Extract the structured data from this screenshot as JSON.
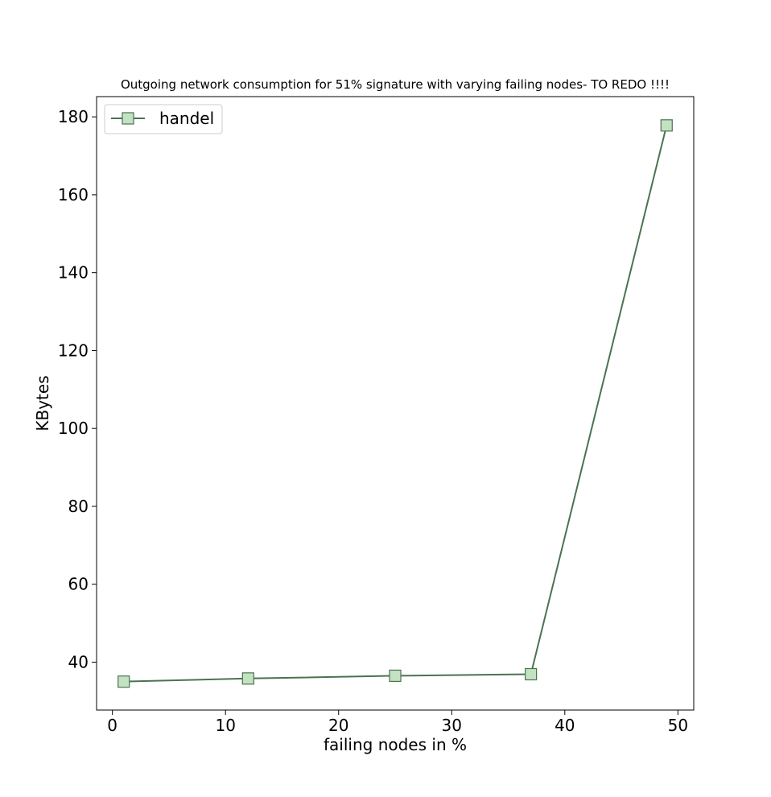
{
  "chart_data": {
    "type": "line",
    "title": "Outgoing network consumption for 51% signature with varying failing nodes- TO REDO !!!!",
    "xlabel": "failing nodes in %",
    "ylabel": "KBytes",
    "xlim": [
      -1.4,
      51.4
    ],
    "ylim": [
      27.7,
      185.2
    ],
    "xticks": [
      0,
      10,
      20,
      30,
      40,
      50
    ],
    "yticks": [
      40,
      60,
      80,
      100,
      120,
      140,
      160,
      180
    ],
    "grid": false,
    "legend_position": "top-left",
    "series": [
      {
        "name": "handel",
        "line_color": "#4a7350",
        "marker": "square",
        "marker_fill": "#c2e2c2",
        "marker_edge": "#4a7350",
        "x": [
          1,
          12,
          25,
          37,
          49
        ],
        "y": [
          35.0,
          35.8,
          36.5,
          36.9,
          177.8
        ]
      }
    ]
  }
}
